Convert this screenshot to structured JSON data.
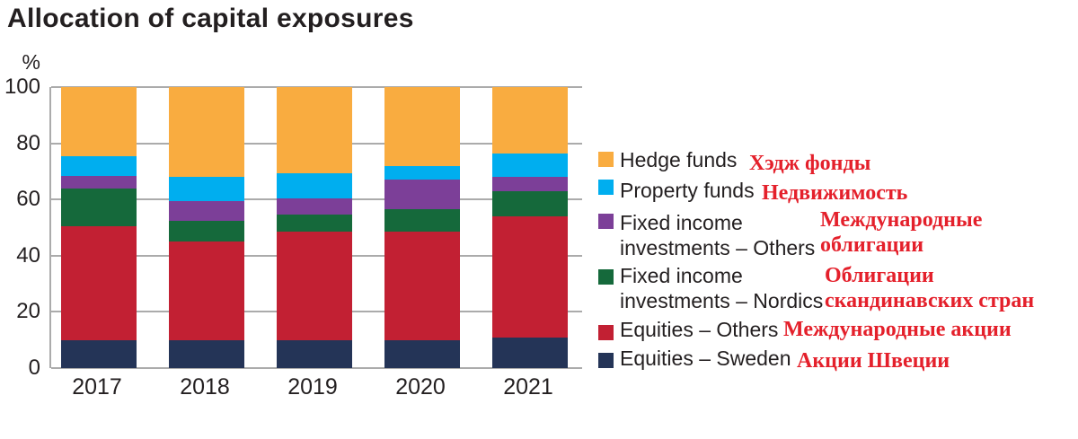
{
  "chart_data": {
    "type": "bar",
    "stacked": true,
    "title": "Allocation of capital exposures",
    "ylabel": "%",
    "ylim": [
      0,
      100
    ],
    "yticks": [
      0,
      20,
      40,
      60,
      80,
      100
    ],
    "grid": true,
    "legend_position": "right",
    "categories": [
      "2017",
      "2018",
      "2019",
      "2020",
      "2021"
    ],
    "series_order_note": "series listed bottom-to-top of the stack",
    "series": [
      {
        "name": "Equities – Sweden",
        "color": "#243457",
        "values": [
          10,
          10,
          10,
          10,
          11
        ]
      },
      {
        "name": "Equities – Others",
        "color": "#C22033",
        "values": [
          40.5,
          35,
          38.5,
          38.5,
          43
        ]
      },
      {
        "name": "Fixed income investments – Nordics",
        "color": "#15693B",
        "values": [
          13.5,
          7.5,
          6,
          8,
          9
        ]
      },
      {
        "name": "Fixed income investments – Others",
        "color": "#7C3F98",
        "values": [
          4.5,
          7,
          6,
          10.5,
          5
        ]
      },
      {
        "name": "Property funds",
        "color": "#00AEEF",
        "values": [
          7,
          8.5,
          9,
          5,
          8.5
        ]
      },
      {
        "name": "Hedge funds",
        "color": "#F9AC40",
        "values": [
          24.5,
          32,
          30.5,
          28,
          23.5
        ]
      }
    ]
  },
  "legend": {
    "items": [
      {
        "label": "Hedge funds",
        "translation": "Хэдж фонды",
        "color": "#F9AC40"
      },
      {
        "label": "Property funds",
        "translation": "Недвижимость",
        "color": "#00AEEF"
      },
      {
        "label_line1": "Fixed income",
        "label_line2": "investments – Others",
        "translation_line1": "Международные",
        "translation_line2": "облигации",
        "color": "#7C3F98"
      },
      {
        "label_line1": "Fixed income",
        "label_line2": "investments – Nordics",
        "translation_line1": "Облигации",
        "translation_line2": "скандинавских стран",
        "color": "#15693B"
      },
      {
        "label": "Equities – Others",
        "translation": "Международные акции",
        "color": "#C22033"
      },
      {
        "label": "Equities – Sweden",
        "translation": "Акции Швеции",
        "color": "#243457"
      }
    ]
  },
  "style": {
    "grid_color": "#ABABAB",
    "text_color": "#231F20",
    "translation_color": "#E4202B"
  }
}
